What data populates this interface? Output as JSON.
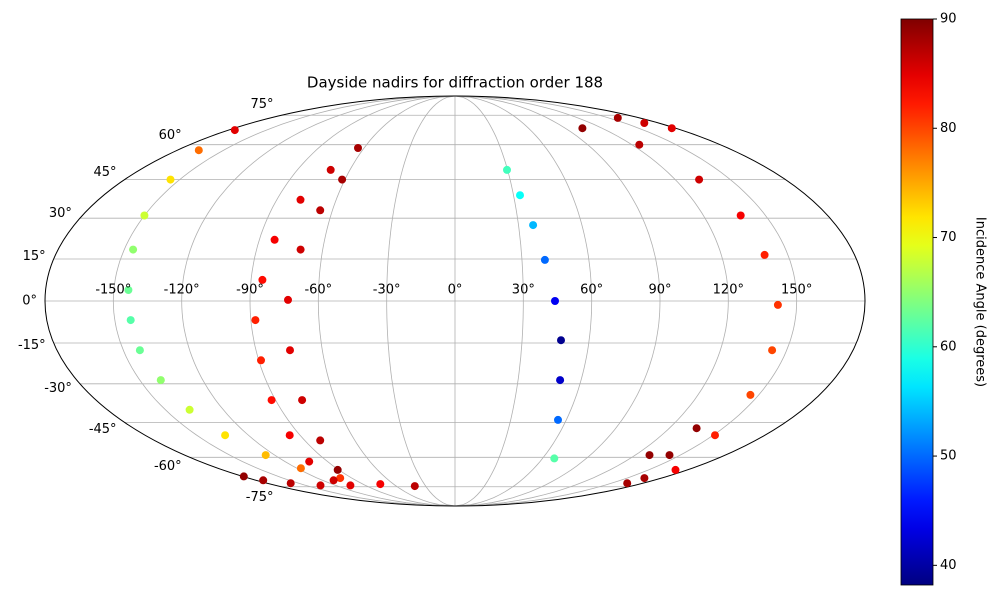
{
  "chart_data": {
    "type": "scatter",
    "projection": "mollweide",
    "title": "Dayside nadirs for diffraction order 188",
    "colorbar_label": "Incidence Angle (degrees)",
    "colormap": "jet",
    "clim": [
      38.2,
      90
    ],
    "cticks": [
      40,
      50,
      60,
      70,
      80,
      90
    ],
    "grid": true,
    "xlim": [
      -180,
      180
    ],
    "ylim": [
      -90,
      90
    ],
    "xticks": [
      {
        "value": -150,
        "label": "-150°"
      },
      {
        "value": -120,
        "label": "-120°"
      },
      {
        "value": -90,
        "label": "-90°"
      },
      {
        "value": -60,
        "label": "-60°"
      },
      {
        "value": -30,
        "label": "-30°"
      },
      {
        "value": 0,
        "label": "0°"
      },
      {
        "value": 30,
        "label": "30°"
      },
      {
        "value": 60,
        "label": "60°"
      },
      {
        "value": 90,
        "label": "90°"
      },
      {
        "value": 120,
        "label": "120°"
      },
      {
        "value": 150,
        "label": "150°"
      }
    ],
    "yticks": [
      {
        "value": -75,
        "label": "-75°"
      },
      {
        "value": -60,
        "label": "-60°"
      },
      {
        "value": -45,
        "label": "-45°"
      },
      {
        "value": -30,
        "label": "-30°"
      },
      {
        "value": -15,
        "label": "-15°"
      },
      {
        "value": 0,
        "label": "0°"
      },
      {
        "value": 15,
        "label": "15°"
      },
      {
        "value": 30,
        "label": "30°"
      },
      {
        "value": 45,
        "label": "45°"
      },
      {
        "value": 60,
        "label": "60°"
      },
      {
        "value": 75,
        "label": "75°"
      }
    ],
    "series": [
      {
        "lon": [
          -175,
          -166,
          -155,
          -150,
          -146,
          -143.6,
          -143,
          -142.5,
          -140,
          -137.5,
          -133.5,
          -126,
          -117,
          -100,
          -73,
          -41
        ],
        "lat": [
          67,
          57.5,
          45,
          31,
          18.4,
          3.9,
          -6.8,
          -17.6,
          -28.6,
          -40,
          -50.3,
          -59,
          -65.2,
          -70.2,
          -73.5,
          -74.6
        ],
        "incidence": [
          85,
          78,
          72,
          68,
          65,
          63,
          62,
          63,
          65,
          68,
          72,
          74,
          78,
          81,
          84,
          87
        ]
      },
      {
        "lon": [
          -64,
          -71,
          -78,
          -83,
          -85,
          -88,
          -89,
          -92,
          -96,
          -103,
          -110
        ],
        "lat": [
          58.5,
          49,
          37,
          22,
          7.5,
          -6.8,
          -21.3,
          -36.2,
          -50.3,
          -62,
          -71.4
        ],
        "incidence": [
          88,
          86,
          85,
          84,
          83,
          82,
          82,
          83,
          84,
          85,
          86
        ]
      },
      {
        "lon": [
          -61.5,
          -66,
          -70,
          -73.3,
          -74.6,
          -76.7,
          -80.7,
          -90.8
        ],
        "lat": [
          45,
          33,
          18.4,
          0.4,
          -17.6,
          -36.2,
          -52.5,
          -66
        ],
        "incidence": [
          88,
          87,
          86,
          85,
          85,
          86,
          87,
          89
        ]
      },
      {
        "lon": [
          29.7,
          33.3,
          36.9,
          40.3,
          43.9,
          47.4,
          50,
          55.5,
          68
        ],
        "lat": [
          49,
          38.8,
          27.4,
          14.7,
          0,
          -14,
          -28.6,
          -44,
          -60.5
        ],
        "incidence": [
          61,
          58,
          54,
          50,
          44,
          39,
          42,
          50,
          62
        ]
      },
      {
        "lon": [
          104,
          125,
          133,
          138,
          139.5,
          141.8,
          143.4,
          145.9,
          151,
          170.7
        ],
        "lat": [
          68,
          60,
          45,
          31,
          16.5,
          -1.4,
          -17.6,
          -34.2,
          -50.3,
          -66
        ],
        "incidence": [
          89,
          87,
          86,
          84,
          82,
          81,
          80,
          80,
          82,
          84
        ]
      },
      {
        "lon": [
          159,
          167.6,
          177
        ],
        "lat": [
          73.5,
          70.7,
          68
        ],
        "incidence": [
          88,
          86,
          85
        ]
      },
      {
        "lon": [
          135.3,
          142.8,
          165
        ],
        "lat": [
          -47.4,
          -59,
          -70.2
        ],
        "incidence": [
          89,
          89,
          88
        ]
      },
      {
        "lon": [
          129.5,
          165
        ],
        "lat": [
          -59,
          -73
        ],
        "incidence": [
          89,
          88
        ]
      },
      {
        "lon": [
          -179,
          -173.7,
          -157.5,
          -135,
          -105
        ],
        "lat": [
          -69.3,
          -71.4,
          -73,
          -74.2,
          -74.2
        ],
        "incidence": [
          89,
          88,
          87,
          86,
          85
        ]
      }
    ]
  }
}
